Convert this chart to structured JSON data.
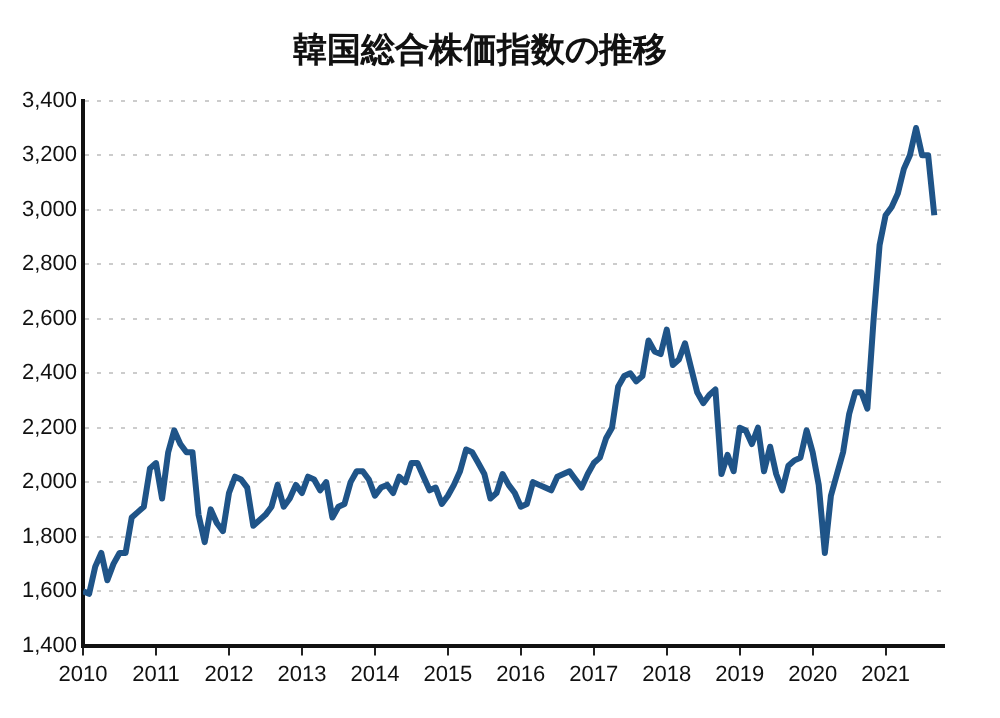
{
  "chart_data": {
    "type": "line",
    "title": "韓国総合株価指数の推移",
    "grid": "y",
    "marker": "none",
    "line_style": "solid",
    "xlim": [
      2010,
      2021.8
    ],
    "xticks": [
      2010,
      2011,
      2012,
      2013,
      2014,
      2015,
      2016,
      2017,
      2018,
      2019,
      2020,
      2021
    ],
    "ylim": [
      1400,
      3400
    ],
    "yticks": [
      {
        "value": 1400,
        "label": "1,400"
      },
      {
        "value": 1600,
        "label": "1,600"
      },
      {
        "value": 1800,
        "label": "1,800"
      },
      {
        "value": 2000,
        "label": "2,000"
      },
      {
        "value": 2200,
        "label": "2,200"
      },
      {
        "value": 2400,
        "label": "2,400"
      },
      {
        "value": 2600,
        "label": "2,600"
      },
      {
        "value": 2800,
        "label": "2,800"
      },
      {
        "value": 3000,
        "label": "3,000"
      },
      {
        "value": 3200,
        "label": "3,200"
      },
      {
        "value": 3400,
        "label": "3,400"
      }
    ],
    "series": [
      {
        "color": "#1f5488",
        "x": [
          2010,
          2010.083,
          2010.167,
          2010.25,
          2010.333,
          2010.417,
          2010.5,
          2010.583,
          2010.667,
          2010.75,
          2010.833,
          2010.917,
          2011,
          2011.083,
          2011.167,
          2011.25,
          2011.333,
          2011.417,
          2011.5,
          2011.583,
          2011.667,
          2011.75,
          2011.833,
          2011.917,
          2012,
          2012.083,
          2012.167,
          2012.25,
          2012.333,
          2012.417,
          2012.5,
          2012.583,
          2012.667,
          2012.75,
          2012.833,
          2012.917,
          2013,
          2013.083,
          2013.167,
          2013.25,
          2013.333,
          2013.417,
          2013.5,
          2013.583,
          2013.667,
          2013.75,
          2013.833,
          2013.917,
          2014,
          2014.083,
          2014.167,
          2014.25,
          2014.333,
          2014.417,
          2014.5,
          2014.583,
          2014.667,
          2014.75,
          2014.833,
          2014.917,
          2015,
          2015.083,
          2015.167,
          2015.25,
          2015.333,
          2015.417,
          2015.5,
          2015.583,
          2015.667,
          2015.75,
          2015.833,
          2015.917,
          2016,
          2016.083,
          2016.167,
          2016.25,
          2016.333,
          2016.417,
          2016.5,
          2016.583,
          2016.667,
          2016.75,
          2016.833,
          2016.917,
          2017,
          2017.083,
          2017.167,
          2017.25,
          2017.333,
          2017.417,
          2017.5,
          2017.583,
          2017.667,
          2017.75,
          2017.833,
          2017.917,
          2018,
          2018.083,
          2018.167,
          2018.25,
          2018.333,
          2018.417,
          2018.5,
          2018.583,
          2018.667,
          2018.75,
          2018.833,
          2018.917,
          2019,
          2019.083,
          2019.167,
          2019.25,
          2019.333,
          2019.417,
          2019.5,
          2019.583,
          2019.667,
          2019.75,
          2019.833,
          2019.917,
          2020,
          2020.083,
          2020.167,
          2020.25,
          2020.333,
          2020.417,
          2020.5,
          2020.583,
          2020.667,
          2020.75,
          2020.833,
          2020.917,
          2021,
          2021.083,
          2021.167,
          2021.25,
          2021.333,
          2021.417,
          2021.5,
          2021.583,
          2021.667
        ],
        "values": [
          1600,
          1590,
          1690,
          1740,
          1640,
          1700,
          1740,
          1740,
          1870,
          1890,
          1910,
          2050,
          2070,
          1940,
          2110,
          2190,
          2140,
          2110,
          2110,
          1880,
          1780,
          1900,
          1850,
          1820,
          1960,
          2020,
          2010,
          1980,
          1840,
          1860,
          1880,
          1910,
          1990,
          1910,
          1940,
          1990,
          1960,
          2020,
          2010,
          1970,
          2000,
          1870,
          1910,
          1920,
          2000,
          2040,
          2040,
          2010,
          1950,
          1980,
          1990,
          1960,
          2020,
          2000,
          2070,
          2070,
          2020,
          1970,
          1980,
          1920,
          1950,
          1990,
          2040,
          2120,
          2110,
          2070,
          2030,
          1940,
          1960,
          2030,
          1990,
          1960,
          1910,
          1920,
          2000,
          1990,
          1980,
          1970,
          2020,
          2030,
          2040,
          2010,
          1980,
          2030,
          2070,
          2090,
          2160,
          2200,
          2350,
          2390,
          2400,
          2370,
          2390,
          2520,
          2480,
          2470,
          2560,
          2430,
          2450,
          2510,
          2420,
          2330,
          2290,
          2320,
          2340,
          2030,
          2100,
          2040,
          2200,
          2190,
          2140,
          2200,
          2040,
          2130,
          2030,
          1970,
          2060,
          2080,
          2090,
          2190,
          2110,
          1990,
          1740,
          1950,
          2030,
          2110,
          2250,
          2330,
          2330,
          2270,
          2590,
          2870,
          2980,
          3010,
          3060,
          3150,
          3200,
          3300,
          3200,
          3200,
          2980
        ]
      }
    ]
  }
}
